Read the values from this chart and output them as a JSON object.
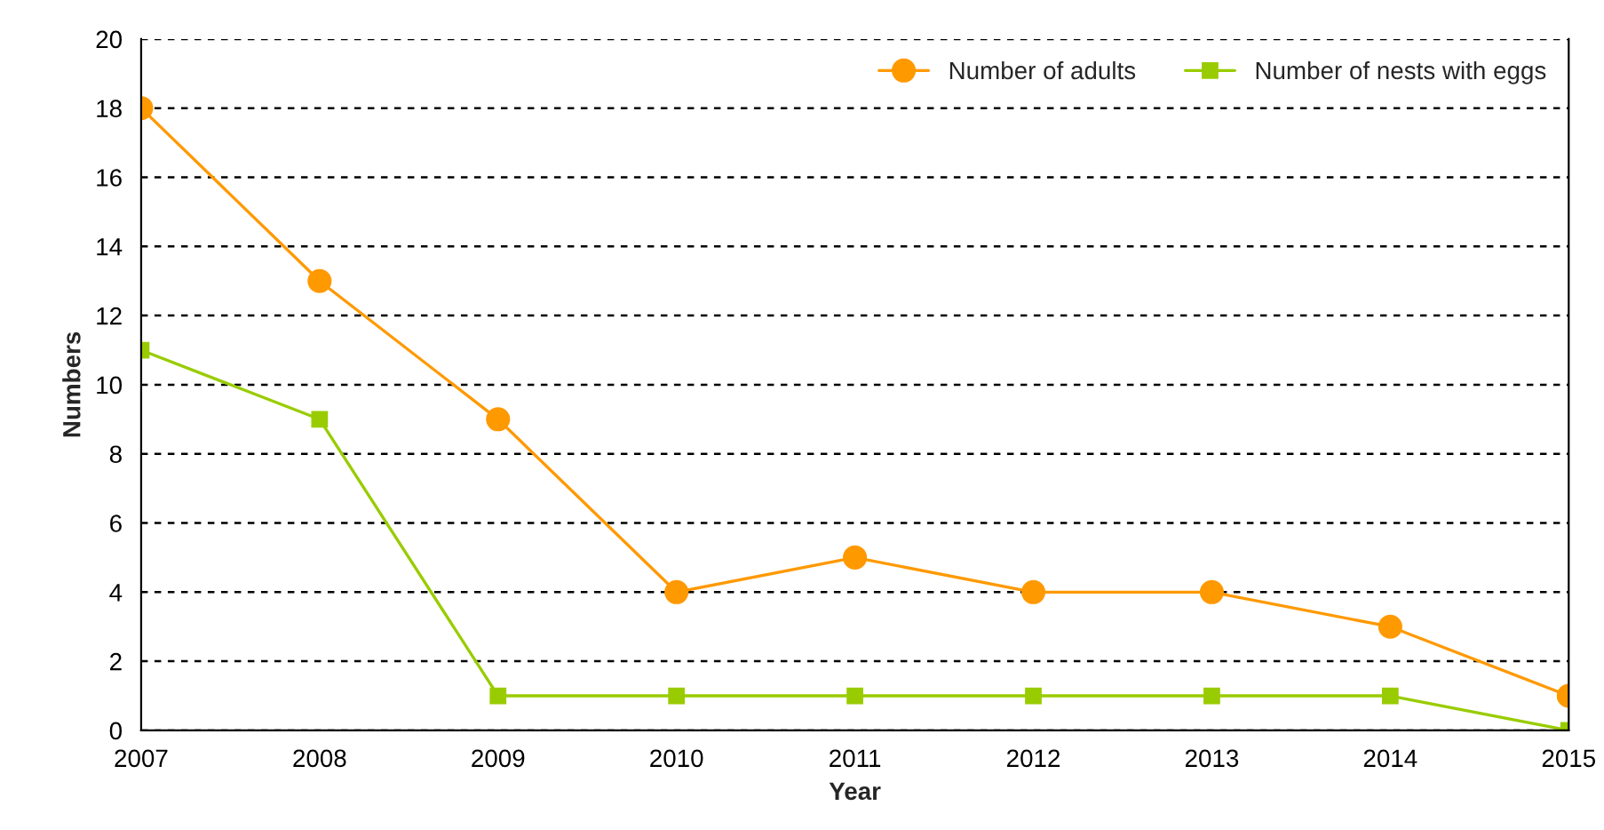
{
  "chart_data": {
    "type": "line",
    "xlabel": "Year",
    "ylabel": "Numbers",
    "x": [
      2007,
      2008,
      2009,
      2010,
      2011,
      2012,
      2013,
      2014,
      2015
    ],
    "series": [
      {
        "name": "Number of adults",
        "color": "#ff9900",
        "marker": "circle",
        "values": [
          18,
          13,
          9,
          4,
          5,
          4,
          4,
          3,
          1
        ]
      },
      {
        "name": "Number of nests with eggs",
        "color": "#99cc00",
        "marker": "square",
        "values": [
          11,
          9,
          1,
          1,
          1,
          1,
          1,
          1,
          0
        ]
      }
    ],
    "xlim": [
      2007,
      2015
    ],
    "xticks": [
      2007,
      2008,
      2009,
      2010,
      2011,
      2012,
      2013,
      2014,
      2015
    ],
    "ylim": [
      0,
      20
    ],
    "yticks": [
      0,
      2,
      4,
      6,
      8,
      10,
      12,
      14,
      16,
      18,
      20
    ],
    "grid": "y",
    "legend": "top right"
  }
}
